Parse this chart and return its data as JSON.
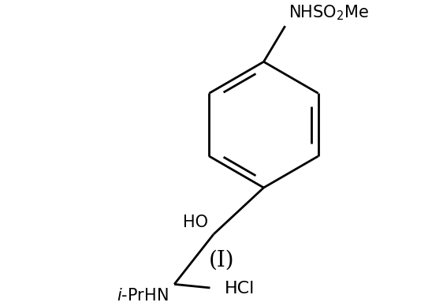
{
  "background_color": "#ffffff",
  "line_color": "#000000",
  "line_width": 2.0,
  "fig_width": 5.62,
  "fig_height": 3.88,
  "dpi": 100,
  "label_NHSO2Me": "NHSO$_2$Me",
  "label_HO": "HO",
  "label_iPrHN": "$i$-PrHN",
  "label_HCl": "HCl",
  "label_roman": "(I)",
  "font_size_labels": 14,
  "font_size_roman": 20
}
